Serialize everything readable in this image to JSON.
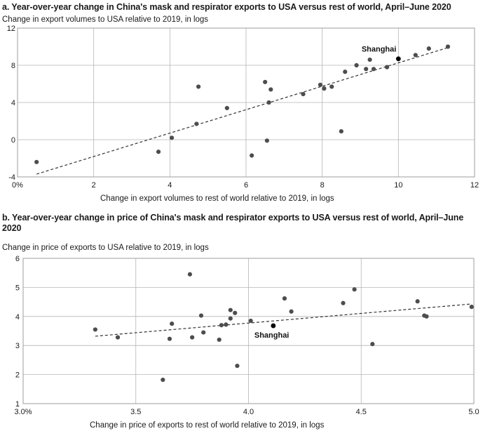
{
  "chart_data": [
    {
      "type": "scatter",
      "title": "a. Year-over-year change in China's mask and respirator exports to USA versus rest of world, April–June 2020",
      "ylabel": "Change in export volumes to USA relative to 2019, in logs",
      "xlabel": "Change in export volumes to rest of world relative to 2019, in logs",
      "xlim": [
        0,
        12
      ],
      "ylim": [
        -4,
        12
      ],
      "xticks": [
        "0%",
        "2",
        "4",
        "6",
        "8",
        "10",
        "12"
      ],
      "yticks": [
        "12",
        "8",
        "4",
        "0",
        "-4"
      ],
      "grid": true,
      "points": [
        {
          "x": 0.5,
          "y": -2.4
        },
        {
          "x": 3.7,
          "y": -1.3
        },
        {
          "x": 4.05,
          "y": 0.2
        },
        {
          "x": 4.7,
          "y": 1.7
        },
        {
          "x": 4.75,
          "y": 5.7
        },
        {
          "x": 5.5,
          "y": 3.4
        },
        {
          "x": 6.15,
          "y": -1.7
        },
        {
          "x": 6.5,
          "y": 6.2
        },
        {
          "x": 6.55,
          "y": -0.1
        },
        {
          "x": 6.6,
          "y": 4.0
        },
        {
          "x": 6.65,
          "y": 5.4
        },
        {
          "x": 7.5,
          "y": 4.9
        },
        {
          "x": 7.95,
          "y": 5.9
        },
        {
          "x": 8.05,
          "y": 5.5
        },
        {
          "x": 8.25,
          "y": 5.7
        },
        {
          "x": 8.5,
          "y": 0.9
        },
        {
          "x": 8.6,
          "y": 7.3
        },
        {
          "x": 8.9,
          "y": 8.0
        },
        {
          "x": 9.15,
          "y": 7.6
        },
        {
          "x": 9.25,
          "y": 8.6
        },
        {
          "x": 9.35,
          "y": 7.6
        },
        {
          "x": 9.7,
          "y": 7.8
        },
        {
          "x": 10.0,
          "y": 8.7,
          "label": "Shanghai",
          "highlight": true
        },
        {
          "x": 10.45,
          "y": 9.1
        },
        {
          "x": 10.8,
          "y": 9.8
        },
        {
          "x": 11.3,
          "y": 10.0
        }
      ],
      "trendline": {
        "style": "dashed",
        "x": [
          0.5,
          11.3
        ],
        "y": [
          -3.7,
          9.9
        ]
      }
    },
    {
      "type": "scatter",
      "title": "b. Year-over-year change in price of China's mask and respirator exports to USA versus rest of world, April–June 2020",
      "ylabel": "Change in price of exports to USA relative to 2019, in logs",
      "xlabel": "Change in price of exports to rest of world relative to 2019, in logs",
      "xlim": [
        3.0,
        5.0
      ],
      "ylim": [
        1,
        6
      ],
      "xticks": [
        "3.0%",
        "3.5",
        "4.0",
        "4.5",
        "5.0"
      ],
      "yticks": [
        "6",
        "5",
        "4",
        "3",
        "2",
        "1"
      ],
      "grid": true,
      "points": [
        {
          "x": 3.32,
          "y": 3.55
        },
        {
          "x": 3.42,
          "y": 3.28
        },
        {
          "x": 3.62,
          "y": 1.82
        },
        {
          "x": 3.65,
          "y": 3.23
        },
        {
          "x": 3.66,
          "y": 3.75
        },
        {
          "x": 3.74,
          "y": 5.45
        },
        {
          "x": 3.75,
          "y": 3.28
        },
        {
          "x": 3.79,
          "y": 4.03
        },
        {
          "x": 3.8,
          "y": 3.45
        },
        {
          "x": 3.87,
          "y": 3.2
        },
        {
          "x": 3.88,
          "y": 3.7
        },
        {
          "x": 3.9,
          "y": 3.72
        },
        {
          "x": 3.92,
          "y": 3.93
        },
        {
          "x": 3.92,
          "y": 4.22
        },
        {
          "x": 3.94,
          "y": 4.12
        },
        {
          "x": 3.95,
          "y": 2.3
        },
        {
          "x": 4.01,
          "y": 3.85
        },
        {
          "x": 4.11,
          "y": 3.68,
          "label": "Shanghai",
          "highlight": true
        },
        {
          "x": 4.16,
          "y": 4.62
        },
        {
          "x": 4.19,
          "y": 4.17
        },
        {
          "x": 4.42,
          "y": 4.46
        },
        {
          "x": 4.47,
          "y": 4.93
        },
        {
          "x": 4.55,
          "y": 3.05
        },
        {
          "x": 4.75,
          "y": 4.52
        },
        {
          "x": 4.78,
          "y": 4.03
        },
        {
          "x": 4.79,
          "y": 4.0
        },
        {
          "x": 4.99,
          "y": 4.33
        }
      ],
      "trendline": {
        "style": "dashed",
        "x": [
          3.32,
          4.99
        ],
        "y": [
          3.32,
          4.43
        ]
      }
    }
  ]
}
